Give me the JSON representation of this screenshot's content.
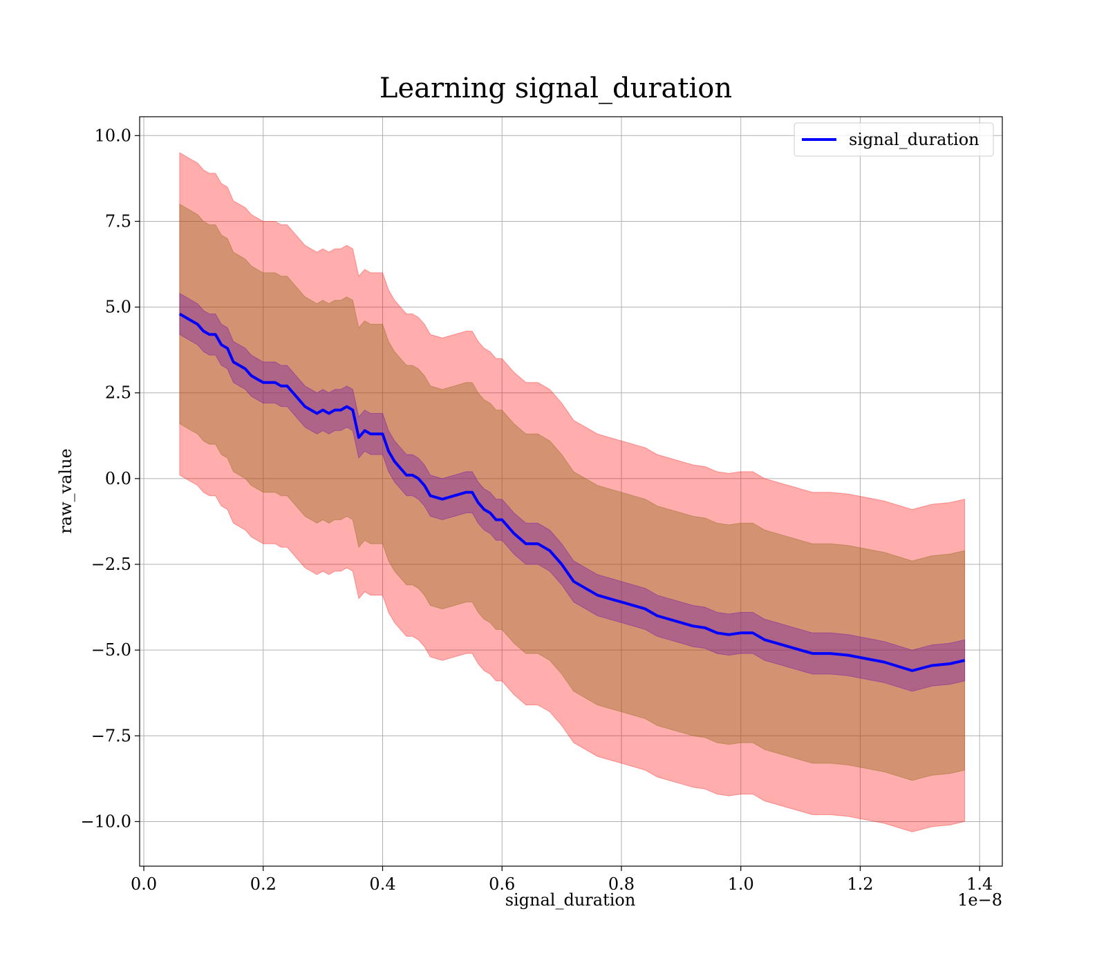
{
  "chart_data": {
    "type": "line",
    "title": "Learning signal_duration",
    "xlabel": "signal_duration",
    "ylabel": "raw_value",
    "x_offset_label": "1e−8",
    "xlim": [
      -0.007,
      1.438
    ],
    "ylim": [
      -11.3,
      10.55
    ],
    "x_ticks": [
      0.0,
      0.2,
      0.4,
      0.6,
      0.8,
      1.0,
      1.2,
      1.4
    ],
    "x_tick_labels": [
      "0.0",
      "0.2",
      "0.4",
      "0.6",
      "0.8",
      "1.0",
      "1.2",
      "1.4"
    ],
    "y_ticks": [
      10.0,
      7.5,
      5.0,
      2.5,
      0.0,
      -2.5,
      -5.0,
      -7.5,
      -10.0
    ],
    "y_tick_labels": [
      "10.0",
      "7.5",
      "5.0",
      "2.5",
      "0.0",
      "−2.5",
      "−5.0",
      "−7.5",
      "−10.0"
    ],
    "grid": true,
    "legend": {
      "position": "top-right",
      "entries": [
        "signal_duration"
      ]
    },
    "colors": {
      "line": "#0000ff",
      "band_outer": "#ff0000",
      "band_middle": "#8b6914",
      "band_inner": "#6a0dad"
    },
    "series": [
      {
        "name": "signal_duration",
        "x": [
          0.06,
          0.07,
          0.08,
          0.09,
          0.1,
          0.11,
          0.12,
          0.13,
          0.14,
          0.15,
          0.16,
          0.17,
          0.18,
          0.19,
          0.2,
          0.21,
          0.22,
          0.23,
          0.24,
          0.25,
          0.26,
          0.27,
          0.28,
          0.29,
          0.3,
          0.31,
          0.32,
          0.33,
          0.34,
          0.35,
          0.36,
          0.37,
          0.38,
          0.39,
          0.4,
          0.41,
          0.42,
          0.43,
          0.44,
          0.45,
          0.46,
          0.47,
          0.48,
          0.5,
          0.52,
          0.54,
          0.55,
          0.56,
          0.57,
          0.58,
          0.59,
          0.6,
          0.62,
          0.64,
          0.66,
          0.68,
          0.7,
          0.72,
          0.74,
          0.76,
          0.78,
          0.8,
          0.82,
          0.84,
          0.86,
          0.88,
          0.9,
          0.92,
          0.94,
          0.96,
          0.98,
          1.0,
          1.02,
          1.04,
          1.06,
          1.08,
          1.1,
          1.12,
          1.15,
          1.18,
          1.21,
          1.24,
          1.287,
          1.32,
          1.35,
          1.375
        ],
        "values": [
          4.8,
          4.7,
          4.6,
          4.5,
          4.3,
          4.2,
          4.2,
          3.9,
          3.8,
          3.4,
          3.3,
          3.2,
          3.0,
          2.9,
          2.8,
          2.8,
          2.8,
          2.7,
          2.7,
          2.5,
          2.3,
          2.1,
          2.0,
          1.9,
          2.0,
          1.9,
          2.0,
          2.0,
          2.1,
          2.0,
          1.2,
          1.4,
          1.3,
          1.3,
          1.3,
          0.8,
          0.5,
          0.3,
          0.1,
          0.1,
          0.0,
          -0.2,
          -0.5,
          -0.6,
          -0.5,
          -0.4,
          -0.4,
          -0.7,
          -0.9,
          -1.0,
          -1.2,
          -1.2,
          -1.6,
          -1.9,
          -1.9,
          -2.1,
          -2.5,
          -3.0,
          -3.2,
          -3.4,
          -3.5,
          -3.6,
          -3.7,
          -3.8,
          -4.0,
          -4.1,
          -4.2,
          -4.3,
          -4.35,
          -4.5,
          -4.55,
          -4.5,
          -4.5,
          -4.7,
          -4.8,
          -4.9,
          -5.0,
          -5.1,
          -5.1,
          -5.15,
          -5.25,
          -5.35,
          -5.6,
          -5.45,
          -5.4,
          -5.3
        ],
        "band_inner": 0.6,
        "band_middle": 3.2,
        "band_outer": 4.7
      }
    ]
  }
}
